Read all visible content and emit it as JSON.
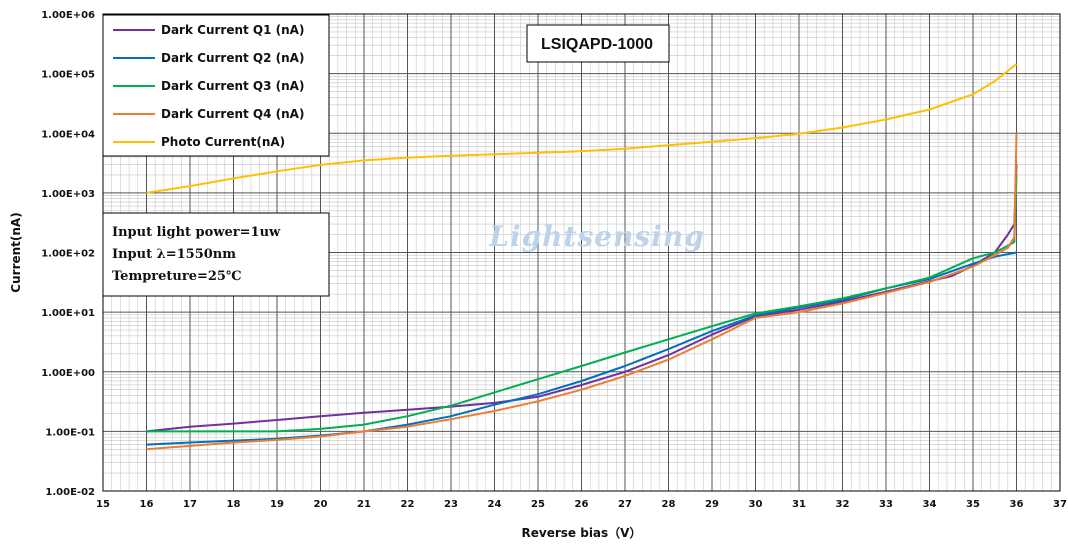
{
  "chart_data": {
    "type": "line",
    "xlabel": "Reverse bias（V）",
    "ylabel": "Current(nA)",
    "xlim": [
      15,
      37
    ],
    "ylim": [
      0.01,
      1000000
    ],
    "y_scale": "log",
    "x_ticks": [
      "15",
      "16",
      "17",
      "18",
      "19",
      "20",
      "21",
      "22",
      "23",
      "24",
      "25",
      "26",
      "27",
      "28",
      "29",
      "30",
      "31",
      "32",
      "33",
      "34",
      "35",
      "36",
      "37"
    ],
    "y_ticks": [
      "1.00E-02",
      "1.00E-01",
      "1.00E+00",
      "1.00E+01",
      "1.00E+02",
      "1.00E+03",
      "1.00E+04",
      "1.00E+05",
      "1.00E+06"
    ],
    "grid": true,
    "legend_position": "top-left",
    "series": [
      {
        "name": "Dark Current Q1 (nA)",
        "color": "#7030a0",
        "points": [
          [
            16,
            0.1
          ],
          [
            17,
            0.12
          ],
          [
            18,
            0.135
          ],
          [
            19,
            0.155
          ],
          [
            20,
            0.18
          ],
          [
            21,
            0.205
          ],
          [
            22,
            0.23
          ],
          [
            23,
            0.26
          ],
          [
            24,
            0.3
          ],
          [
            25,
            0.38
          ],
          [
            26,
            0.6
          ],
          [
            27,
            1.0
          ],
          [
            28,
            1.9
          ],
          [
            29,
            4.2
          ],
          [
            30,
            8.5
          ],
          [
            31,
            11
          ],
          [
            32,
            15
          ],
          [
            33,
            22
          ],
          [
            34,
            33
          ],
          [
            34.5,
            40
          ],
          [
            35,
            60
          ],
          [
            35.5,
            100
          ],
          [
            35.8,
            200
          ],
          [
            35.95,
            300
          ],
          [
            36,
            3000
          ]
        ]
      },
      {
        "name": "Dark Current Q2 (nA)",
        "color": "#0070c0",
        "points": [
          [
            16,
            0.06
          ],
          [
            17,
            0.065
          ],
          [
            18,
            0.07
          ],
          [
            19,
            0.075
          ],
          [
            20,
            0.085
          ],
          [
            21,
            0.1
          ],
          [
            22,
            0.13
          ],
          [
            23,
            0.18
          ],
          [
            24,
            0.28
          ],
          [
            25,
            0.42
          ],
          [
            26,
            0.7
          ],
          [
            27,
            1.25
          ],
          [
            28,
            2.4
          ],
          [
            29,
            4.8
          ],
          [
            30,
            8.8
          ],
          [
            31,
            12
          ],
          [
            32,
            16
          ],
          [
            33,
            25
          ],
          [
            34,
            36
          ],
          [
            35,
            65
          ],
          [
            35.5,
            85
          ],
          [
            36,
            100
          ]
        ]
      },
      {
        "name": "Dark Current Q3 (nA)",
        "color": "#00b050",
        "points": [
          [
            16,
            0.1
          ],
          [
            17,
            0.1
          ],
          [
            18,
            0.1
          ],
          [
            19,
            0.1
          ],
          [
            20,
            0.11
          ],
          [
            21,
            0.13
          ],
          [
            22,
            0.18
          ],
          [
            23,
            0.27
          ],
          [
            24,
            0.45
          ],
          [
            25,
            0.75
          ],
          [
            26,
            1.25
          ],
          [
            27,
            2.1
          ],
          [
            28,
            3.5
          ],
          [
            29,
            5.8
          ],
          [
            30,
            9.5
          ],
          [
            31,
            12.5
          ],
          [
            32,
            17
          ],
          [
            33,
            25
          ],
          [
            34,
            38
          ],
          [
            35,
            80
          ],
          [
            35.5,
            100
          ],
          [
            35.8,
            130
          ],
          [
            35.95,
            150
          ],
          [
            36,
            2000
          ]
        ]
      },
      {
        "name": "Dark Current Q4 (nA)",
        "color": "#ed7d31",
        "points": [
          [
            16,
            0.05
          ],
          [
            17,
            0.057
          ],
          [
            18,
            0.065
          ],
          [
            19,
            0.072
          ],
          [
            20,
            0.082
          ],
          [
            21,
            0.1
          ],
          [
            22,
            0.12
          ],
          [
            23,
            0.16
          ],
          [
            24,
            0.22
          ],
          [
            25,
            0.32
          ],
          [
            26,
            0.5
          ],
          [
            27,
            0.85
          ],
          [
            28,
            1.6
          ],
          [
            29,
            3.5
          ],
          [
            30,
            8
          ],
          [
            31,
            10
          ],
          [
            32,
            14
          ],
          [
            33,
            21
          ],
          [
            34,
            32
          ],
          [
            35,
            58
          ],
          [
            35.5,
            90
          ],
          [
            35.8,
            120
          ],
          [
            35.95,
            180
          ],
          [
            36,
            10000
          ]
        ]
      },
      {
        "name": "Photo Current(nA)",
        "color": "#ffc000",
        "points": [
          [
            16,
            1000
          ],
          [
            17,
            1300
          ],
          [
            18,
            1750
          ],
          [
            19,
            2300
          ],
          [
            20,
            2950
          ],
          [
            21,
            3500
          ],
          [
            22,
            3900
          ],
          [
            23,
            4200
          ],
          [
            24,
            4450
          ],
          [
            25,
            4700
          ],
          [
            26,
            5000
          ],
          [
            27,
            5500
          ],
          [
            28,
            6300
          ],
          [
            29,
            7200
          ],
          [
            30,
            8300
          ],
          [
            31,
            9800
          ],
          [
            32,
            12500
          ],
          [
            33,
            17000
          ],
          [
            34,
            25000
          ],
          [
            35,
            45000
          ],
          [
            35.5,
            75000
          ],
          [
            36,
            145000
          ]
        ]
      }
    ]
  },
  "model_label": "LSIQAPD-1000",
  "conditions": [
    "Input light power=1uw",
    "Input λ=1550nm",
    "Tempreture=25℃"
  ],
  "watermark": "Lightsensing"
}
